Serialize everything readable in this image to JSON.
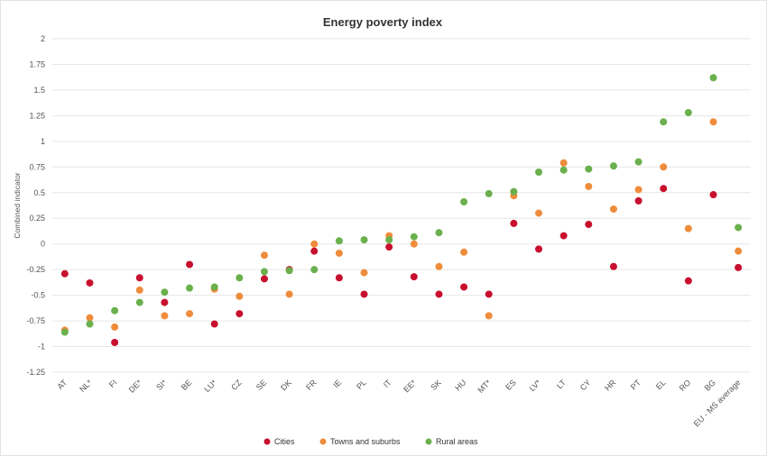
{
  "chart_data": {
    "type": "scatter",
    "title": "Energy poverty index",
    "xlabel": "",
    "ylabel": "Combined indicator",
    "ylim": [
      -1.25,
      2
    ],
    "yticks": [
      "2",
      "1.75",
      "1.5",
      "1.25",
      "1",
      "0.75",
      "0.5",
      "0.25",
      "0",
      "-0.25",
      "-0.5",
      "-0.75",
      "-1",
      "-1.25"
    ],
    "categories": [
      "AT",
      "NL*",
      "FI",
      "DE*",
      "SI*",
      "BE",
      "LU*",
      "CZ",
      "SE",
      "DK",
      "FR",
      "IE",
      "PL",
      "IT",
      "EE*",
      "SK",
      "HU",
      "MT*",
      "ES",
      "LV*",
      "LT",
      "CY",
      "HR",
      "PT",
      "EL",
      "RO",
      "BG",
      "EU - MS average"
    ],
    "grid": true,
    "legend_position": "bottom",
    "series": [
      {
        "name": "Cities",
        "color": "#c8102e",
        "values": [
          -0.29,
          -0.38,
          -0.96,
          -0.33,
          -0.57,
          -0.2,
          -0.78,
          -0.68,
          -0.34,
          -0.25,
          -0.07,
          -0.33,
          -0.49,
          -0.03,
          -0.32,
          -0.49,
          -0.42,
          -0.49,
          0.2,
          -0.05,
          0.08,
          0.19,
          -0.22,
          0.42,
          0.54,
          -0.36,
          0.48,
          -0.23
        ]
      },
      {
        "name": "Towns and suburbs",
        "color": "#ef8c3c",
        "values": [
          -0.84,
          -0.72,
          -0.81,
          -0.45,
          -0.7,
          -0.68,
          -0.44,
          -0.51,
          -0.11,
          -0.49,
          0.0,
          -0.09,
          -0.28,
          0.08,
          0.0,
          -0.22,
          -0.08,
          -0.7,
          0.47,
          0.3,
          0.79,
          0.56,
          0.34,
          0.53,
          0.75,
          0.15,
          1.19,
          -0.07
        ]
      },
      {
        "name": "Rural areas",
        "color": "#6ab04c",
        "values": [
          -0.86,
          -0.78,
          -0.65,
          -0.57,
          -0.47,
          -0.43,
          -0.42,
          -0.33,
          -0.27,
          -0.26,
          -0.25,
          0.03,
          0.04,
          0.04,
          0.07,
          0.11,
          0.41,
          0.49,
          0.51,
          0.7,
          0.72,
          0.73,
          0.76,
          0.8,
          1.19,
          1.28,
          1.62,
          0.16
        ]
      }
    ]
  }
}
